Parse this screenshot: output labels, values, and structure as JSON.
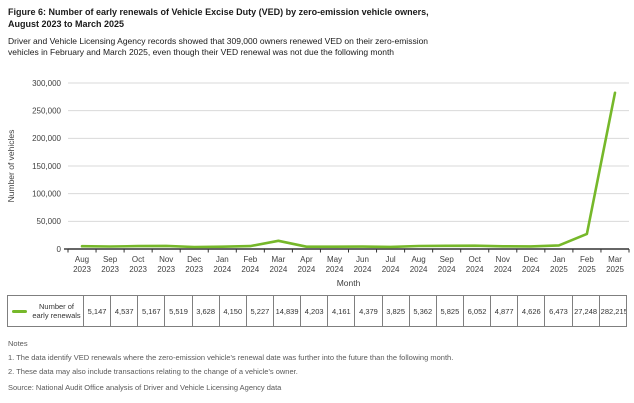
{
  "figure": {
    "title_lines": [
      "Figure 6: Number of early renewals of Vehicle Excise Duty (VED) by zero-emission vehicle owners,",
      "August 2023 to March 2025"
    ],
    "subtitle_lines": [
      "Driver and Vehicle Licensing Agency records showed that 309,000 owners renewed VED on their zero-emission",
      "vehicles in February and March 2025, even though their VED renewal was not due the following month"
    ]
  },
  "chart_data": {
    "type": "line",
    "title": "Figure 6: Number of early renewals of Vehicle Excise Duty (VED) by zero-emission vehicle owners, August 2023 to March 2025",
    "categories": [
      "Aug 2023",
      "Sep 2023",
      "Oct 2023",
      "Nov 2023",
      "Dec 2023",
      "Jan 2024",
      "Feb 2024",
      "Mar 2024",
      "Apr 2024",
      "May 2024",
      "Jun 2024",
      "Jul 2024",
      "Aug 2024",
      "Sep 2024",
      "Oct 2024",
      "Nov 2024",
      "Dec 2024",
      "Jan 2025",
      "Feb 2025",
      "Mar 2025"
    ],
    "series": [
      {
        "name": "Number of early renewals",
        "color": "#76b82a",
        "values": [
          5147,
          4537,
          5167,
          5519,
          3628,
          4150,
          5227,
          14839,
          4203,
          4161,
          4379,
          3825,
          5362,
          5825,
          6052,
          4877,
          4626,
          6473,
          27248,
          282215
        ]
      }
    ],
    "value_labels": [
      "5,147",
      "4,537",
      "5,167",
      "5,519",
      "3,628",
      "4,150",
      "5,227",
      "14,839",
      "4,203",
      "4,161",
      "4,379",
      "3,825",
      "5,362",
      "5,825",
      "6,052",
      "4,877",
      "4,626",
      "6,473",
      "27,248",
      "282,215"
    ],
    "xlabel": "Month",
    "ylabel": "Number of vehicles",
    "ylim": [
      0,
      300000
    ],
    "ytick_step": 50000,
    "ytick_labels": [
      "0",
      "50,000",
      "100,000",
      "150,000",
      "200,000",
      "250,000",
      "300,000"
    ],
    "grid": "horizontal",
    "legend_position": "table-left"
  },
  "notes": {
    "heading": "Notes",
    "items": [
      "1. The data identify VED renewals where the zero-emission vehicle's renewal date was further into the future than the following month.",
      "2. These data may also include transactions relating to the change of a vehicle's owner."
    ],
    "source": "Source: National Audit Office analysis of Driver and Vehicle Licensing Agency data"
  },
  "colors": {
    "line": "#76b82a",
    "gridline": "#d9d9d9",
    "axis": "#333333",
    "tick_text": "#404040",
    "title_text": "#1a1a1a",
    "notes_text": "#595959",
    "table_border": "#7f7f7f",
    "background": "#ffffff"
  }
}
